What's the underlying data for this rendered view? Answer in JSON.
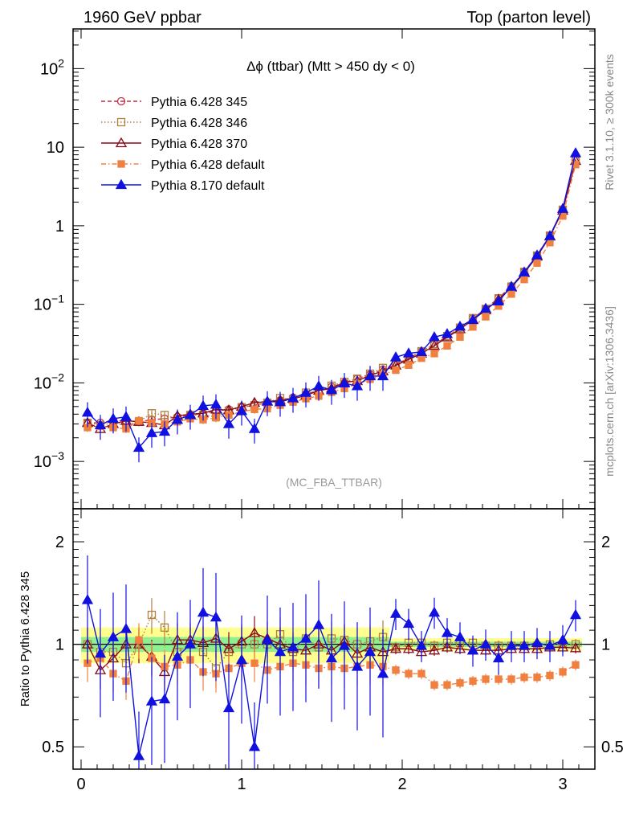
{
  "header": {
    "left": "1960 GeV ppbar",
    "right": "Top (parton level)"
  },
  "side_labels": {
    "rivet": "Rivet 3.1.10, ≥ 300k events",
    "mcplots": "mcplots.cern.ch [arXiv:1306.3436]"
  },
  "chart_data": [
    {
      "type": "line",
      "panel": "main",
      "title": "Δϕ (ttbar) (Mtt > 450 dy < 0)",
      "watermark": "(MC_FBA_TTBAR)",
      "yscale": "log",
      "xlim": [
        -0.05,
        3.2
      ],
      "ylim": [
        0.00025,
        320
      ],
      "yticks": [
        {
          "v": 0.001,
          "base": "10",
          "exp": "−3"
        },
        {
          "v": 0.01,
          "base": "10",
          "exp": "−2"
        },
        {
          "v": 0.1,
          "base": "10",
          "exp": "−1"
        },
        {
          "v": 1,
          "base": "1",
          "exp": ""
        },
        {
          "v": 10,
          "base": "10",
          "exp": ""
        },
        {
          "v": 100,
          "base": "10",
          "exp": "2"
        }
      ],
      "legend_placement": "top-left",
      "series": [
        {
          "name": "Pythia 6.428 345",
          "color": "#c0304a",
          "marker": "circle-open",
          "dash": "5,3",
          "x": [
            0.04,
            0.12,
            0.2,
            0.28,
            0.36,
            0.44,
            0.52,
            0.6,
            0.68,
            0.76,
            0.84,
            0.92,
            1.0,
            1.08,
            1.16,
            1.24,
            1.32,
            1.4,
            1.48,
            1.56,
            1.64,
            1.72,
            1.8,
            1.88,
            1.96,
            2.04,
            2.12,
            2.2,
            2.28,
            2.36,
            2.44,
            2.52,
            2.6,
            2.68,
            2.76,
            2.84,
            2.92,
            3.0,
            3.08
          ],
          "y": [
            0.0031,
            0.0031,
            0.0033,
            0.0033,
            0.0032,
            0.0034,
            0.0035,
            0.0037,
            0.0039,
            0.0041,
            0.0044,
            0.0046,
            0.0049,
            0.0052,
            0.0056,
            0.006,
            0.0065,
            0.0072,
            0.008,
            0.0089,
            0.01,
            0.0113,
            0.0128,
            0.0148,
            0.0172,
            0.0206,
            0.025,
            0.031,
            0.039,
            0.05,
            0.066,
            0.088,
            0.12,
            0.17,
            0.26,
            0.42,
            0.75,
            1.6,
            6.9
          ]
        },
        {
          "name": "Pythia 6.428 346",
          "color": "#b08040",
          "marker": "square-open",
          "dash": "1.5,2.5",
          "x": [
            0.04,
            0.12,
            0.2,
            0.28,
            0.36,
            0.44,
            0.52,
            0.6,
            0.68,
            0.76,
            0.84,
            0.92,
            1.0,
            1.08,
            1.16,
            1.24,
            1.32,
            1.4,
            1.48,
            1.56,
            1.64,
            1.72,
            1.8,
            1.88,
            1.96,
            2.04,
            2.12,
            2.2,
            2.28,
            2.36,
            2.44,
            2.52,
            2.6,
            2.68,
            2.76,
            2.84,
            2.92,
            3.0,
            3.08
          ],
          "y": [
            0.0031,
            0.0029,
            0.0031,
            0.0029,
            0.0032,
            0.0041,
            0.0039,
            0.0035,
            0.0039,
            0.0039,
            0.0037,
            0.0044,
            0.0049,
            0.0052,
            0.0056,
            0.0064,
            0.0062,
            0.0075,
            0.0078,
            0.0092,
            0.0103,
            0.0113,
            0.0131,
            0.0155,
            0.0168,
            0.0209,
            0.0253,
            0.0308,
            0.0394,
            0.0505,
            0.0667,
            0.0875,
            0.1192,
            0.1683,
            0.2587,
            0.4172,
            0.7493,
            1.601,
            6.9
          ]
        },
        {
          "name": "Pythia 6.428 370",
          "color": "#8b0a1a",
          "marker": "triangle-open",
          "dash": "",
          "x": [
            0.04,
            0.12,
            0.2,
            0.28,
            0.36,
            0.44,
            0.52,
            0.6,
            0.68,
            0.76,
            0.84,
            0.92,
            1.0,
            1.08,
            1.16,
            1.24,
            1.32,
            1.4,
            1.48,
            1.56,
            1.64,
            1.72,
            1.8,
            1.88,
            1.96,
            2.04,
            2.12,
            2.2,
            2.28,
            2.36,
            2.44,
            2.52,
            2.6,
            2.68,
            2.76,
            2.84,
            2.92,
            3.0,
            3.08
          ],
          "y": [
            0.0031,
            0.0026,
            0.003,
            0.0033,
            0.0032,
            0.0031,
            0.0029,
            0.0038,
            0.004,
            0.0041,
            0.0046,
            0.0045,
            0.005,
            0.0056,
            0.0058,
            0.006,
            0.0063,
            0.0069,
            0.008,
            0.0085,
            0.0102,
            0.0106,
            0.0125,
            0.0141,
            0.0167,
            0.0199,
            0.0237,
            0.0297,
            0.0381,
            0.0483,
            0.0634,
            0.0843,
            0.1153,
            0.1643,
            0.2509,
            0.407,
            0.7323,
            1.5626,
            6.7278
          ]
        },
        {
          "name": "Pythia 6.428 default",
          "color": "#f08040",
          "marker": "square-filled",
          "dash": "6,3,1.5,3",
          "x": [
            0.04,
            0.12,
            0.2,
            0.28,
            0.36,
            0.44,
            0.52,
            0.6,
            0.68,
            0.76,
            0.84,
            0.92,
            1.0,
            1.08,
            1.16,
            1.24,
            1.32,
            1.4,
            1.48,
            1.56,
            1.64,
            1.72,
            1.8,
            1.88,
            1.96,
            2.04,
            2.12,
            2.2,
            2.28,
            2.36,
            2.44,
            2.52,
            2.6,
            2.68,
            2.76,
            2.84,
            2.92,
            3.0,
            3.08
          ],
          "y": [
            0.0027,
            0.0028,
            0.0027,
            0.0026,
            0.0033,
            0.0031,
            0.003,
            0.0032,
            0.0035,
            0.0034,
            0.0036,
            0.0039,
            0.0043,
            0.0046,
            0.0047,
            0.0052,
            0.0057,
            0.0063,
            0.0068,
            0.0076,
            0.0085,
            0.0097,
            0.0111,
            0.0128,
            0.0145,
            0.0168,
            0.0206,
            0.0236,
            0.0296,
            0.0383,
            0.0515,
            0.0694,
            0.0951,
            0.135,
            0.2069,
            0.335,
            0.61,
            1.33,
            6.0
          ]
        },
        {
          "name": "Pythia 8.170 default",
          "color": "#1010e0",
          "marker": "triangle-filled",
          "dash": "",
          "x": [
            0.04,
            0.12,
            0.2,
            0.28,
            0.36,
            0.44,
            0.52,
            0.6,
            0.68,
            0.76,
            0.84,
            0.92,
            1.0,
            1.08,
            1.16,
            1.24,
            1.32,
            1.4,
            1.48,
            1.56,
            1.64,
            1.72,
            1.8,
            1.88,
            1.96,
            2.04,
            2.12,
            2.2,
            2.28,
            2.36,
            2.44,
            2.52,
            2.6,
            2.68,
            2.76,
            2.84,
            2.92,
            3.0,
            3.08
          ],
          "y": [
            0.0042,
            0.0029,
            0.0035,
            0.0037,
            0.0015,
            0.0023,
            0.0024,
            0.0034,
            0.0039,
            0.0051,
            0.0053,
            0.003,
            0.0044,
            0.0026,
            0.0058,
            0.0057,
            0.0064,
            0.0075,
            0.0091,
            0.0081,
            0.0099,
            0.0091,
            0.0122,
            0.0122,
            0.0212,
            0.0238,
            0.0248,
            0.0383,
            0.042,
            0.0523,
            0.0634,
            0.0882,
            0.1094,
            0.1683,
            0.2561,
            0.4214,
            0.7418,
            1.648,
            8.418
          ]
        }
      ]
    },
    {
      "type": "line",
      "panel": "ratio",
      "ylabel": "Ratio to Pythia 6.428 345",
      "yscale": "log",
      "xlim": [
        -0.05,
        3.2
      ],
      "ylim": [
        0.43,
        2.5
      ],
      "yticks": [
        0.5,
        1,
        2
      ],
      "xticks": [
        0,
        1,
        2,
        3
      ],
      "bands": {
        "inner_color": "#90f090",
        "outer_color": "#ffff90",
        "inner": 0.05,
        "outer": 0.12
      },
      "series": [
        {
          "name": "Pythia 6.428 345",
          "values": [
            1,
            1,
            1,
            1,
            1,
            1,
            1,
            1,
            1,
            1,
            1,
            1,
            1,
            1,
            1,
            1,
            1,
            1,
            1,
            1,
            1,
            1,
            1,
            1,
            1,
            1,
            1,
            1,
            1,
            1,
            1,
            1,
            1,
            1,
            1,
            1,
            1,
            1,
            1
          ]
        },
        {
          "name": "Pythia 6.428 346",
          "values": [
            1.0,
            0.95,
            0.95,
            0.88,
            1.0,
            1.22,
            1.12,
            0.95,
            1.0,
            0.95,
            0.85,
            0.95,
            1.0,
            1.0,
            1.0,
            1.07,
            0.95,
            1.04,
            0.98,
            1.04,
            1.03,
            1.0,
            1.02,
            1.05,
            0.98,
            1.01,
            1.01,
            0.99,
            1.01,
            1.01,
            1.01,
            0.99,
            0.99,
            0.99,
            0.99,
            0.99,
            0.999,
            1.0,
            1.0
          ]
        },
        {
          "name": "Pythia 6.428 370",
          "values": [
            1.0,
            0.84,
            0.91,
            1.0,
            1.0,
            0.92,
            0.83,
            1.03,
            1.03,
            1.01,
            1.04,
            0.97,
            1.02,
            1.08,
            1.04,
            1.0,
            0.97,
            0.96,
            1.0,
            0.96,
            1.02,
            0.94,
            0.98,
            0.95,
            0.97,
            0.97,
            0.95,
            0.96,
            0.98,
            0.97,
            0.96,
            0.96,
            0.96,
            0.97,
            0.97,
            0.97,
            0.98,
            0.98,
            0.975
          ]
        },
        {
          "name": "Pythia 6.428 default",
          "values": [
            0.88,
            0.91,
            0.82,
            0.78,
            1.03,
            0.91,
            0.86,
            0.87,
            0.9,
            0.83,
            0.82,
            0.85,
            0.88,
            0.88,
            0.84,
            0.86,
            0.88,
            0.87,
            0.85,
            0.86,
            0.85,
            0.86,
            0.87,
            0.86,
            0.84,
            0.82,
            0.82,
            0.76,
            0.76,
            0.77,
            0.78,
            0.79,
            0.79,
            0.79,
            0.8,
            0.8,
            0.81,
            0.83,
            0.87
          ]
        },
        {
          "name": "Pythia 8.170 default",
          "values": [
            1.35,
            0.94,
            1.05,
            1.11,
            0.47,
            0.68,
            0.69,
            0.92,
            1.0,
            1.24,
            1.2,
            0.65,
            0.9,
            0.5,
            1.03,
            0.95,
            0.98,
            1.04,
            1.14,
            0.91,
            0.99,
            0.86,
            0.95,
            0.82,
            1.23,
            1.15,
            0.99,
            1.24,
            1.08,
            1.05,
            0.96,
            1.0,
            0.91,
            0.99,
            0.99,
            1.01,
            0.99,
            1.03,
            1.22
          ]
        }
      ]
    }
  ]
}
